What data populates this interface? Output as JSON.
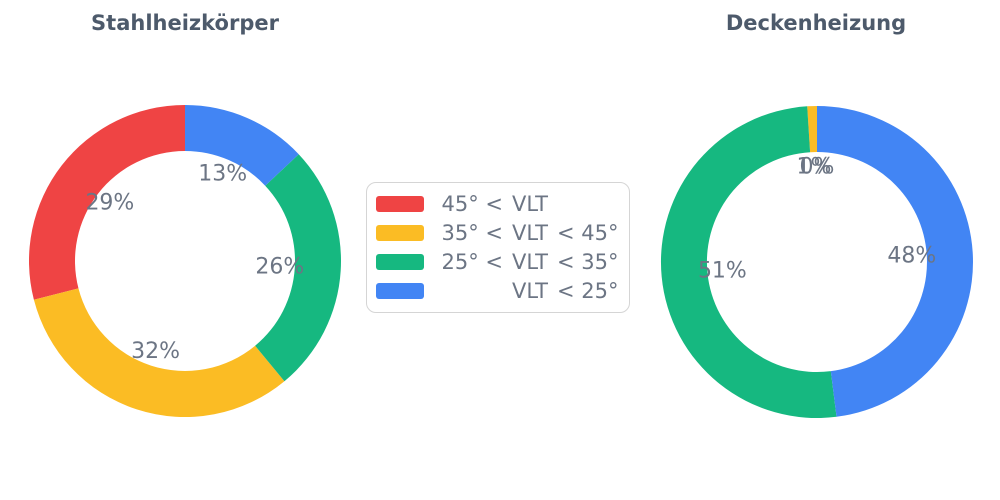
{
  "page": {
    "background": "#ffffff",
    "title_color": "#4D5A6B",
    "label_color": "#6C7584",
    "legend_border_color": "#D5D5D5"
  },
  "legend": {
    "items": [
      {
        "color": "#EF4444",
        "label": "45° < VLT",
        "prefix": "45° <",
        "mid": "VLT",
        "suffix": ""
      },
      {
        "color": "#FBBC24",
        "label": "35° < VLT < 45°",
        "prefix": "35° <",
        "mid": "VLT",
        "suffix": "< 45°"
      },
      {
        "color": "#16B880",
        "label": "25° < VLT < 35°",
        "prefix": "25° <",
        "mid": "VLT",
        "suffix": "< 35°"
      },
      {
        "color": "#4285F4",
        "label": "VLT < 25°",
        "prefix": "",
        "mid": "VLT",
        "suffix": "< 25°"
      }
    ]
  },
  "chart_data": [
    {
      "type": "pie",
      "title": "Stahlheizkörper",
      "labels": [
        "45° < VLT",
        "35° < VLT < 45°",
        "25° < VLT < 35°",
        "VLT < 25°"
      ],
      "values": [
        29,
        32,
        26,
        13
      ],
      "slice_labels": [
        "29%",
        "32%",
        "26%",
        "13%"
      ],
      "colors": [
        "#EF4444",
        "#FBBC24",
        "#16B880",
        "#4285F4"
      ],
      "hole_ratio": 0.705,
      "direction": "counterclockwise",
      "start_angle": "top",
      "legend_position": "center-between-charts"
    },
    {
      "type": "pie",
      "title": "Deckenheizung",
      "labels": [
        "45° < VLT",
        "35° < VLT < 45°",
        "25° < VLT < 35°",
        "VLT < 25°"
      ],
      "values": [
        0,
        1,
        51,
        48
      ],
      "slice_labels": [
        "0%",
        "1%",
        "51%",
        "48%"
      ],
      "colors": [
        "#EF4444",
        "#FBBC24",
        "#16B880",
        "#4285F4"
      ],
      "hole_ratio": 0.705,
      "direction": "counterclockwise",
      "start_angle": "top",
      "legend_position": "center-between-charts"
    }
  ]
}
